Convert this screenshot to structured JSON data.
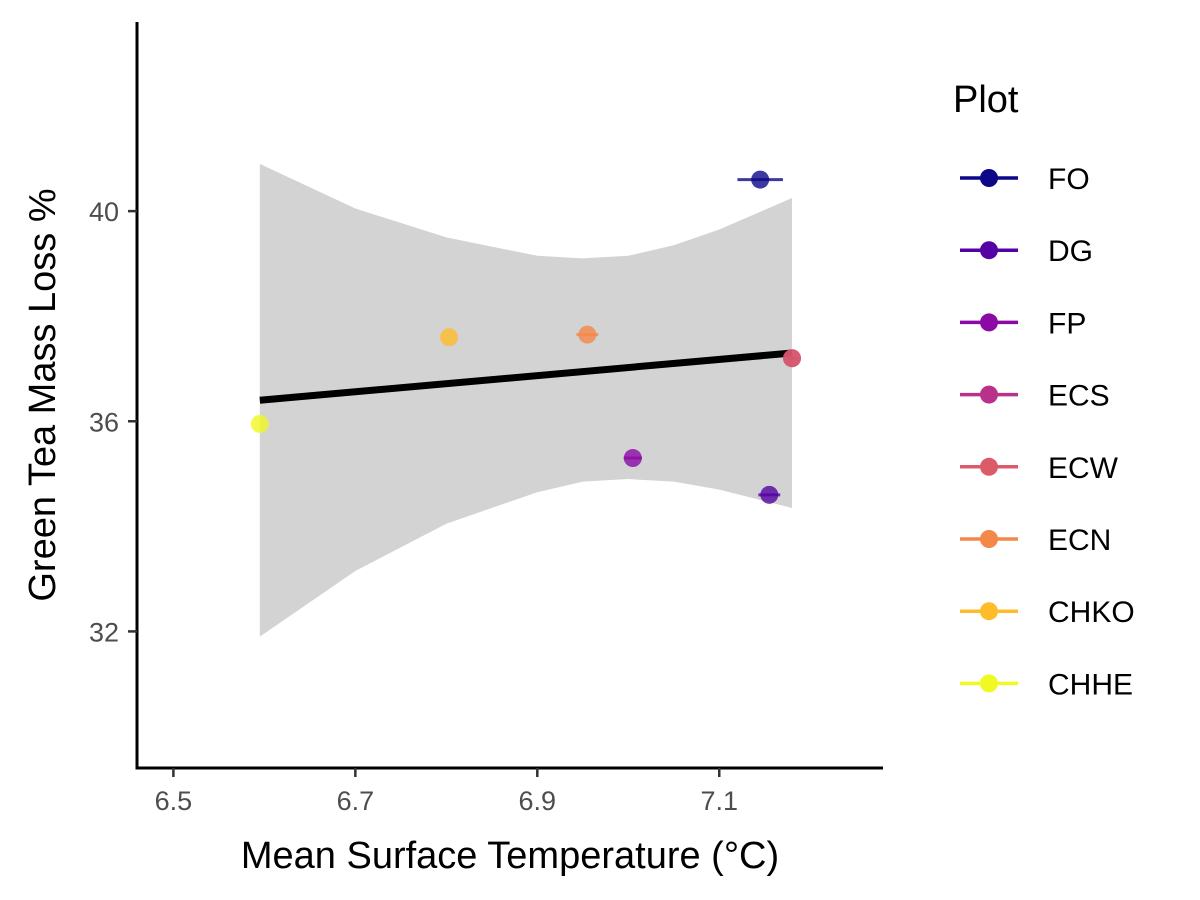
{
  "chart_data": {
    "type": "scatter",
    "xlabel": "Mean Surface Temperature (°C)",
    "ylabel": "Green Tea Mass Loss %",
    "xlim": [
      6.46,
      7.28
    ],
    "ylim": [
      29.4,
      43.6
    ],
    "x_ticks": [
      6.5,
      6.7,
      6.9,
      7.1
    ],
    "x_tick_labels": [
      "6.5",
      "6.7",
      "6.9",
      "7.1"
    ],
    "y_ticks": [
      32,
      36,
      40
    ],
    "y_tick_labels": [
      "32",
      "36",
      "40"
    ],
    "grid": false,
    "legend": {
      "title": "Plot",
      "position": "right"
    },
    "series": [
      {
        "name": "FO",
        "color": "#0D0887",
        "x": 7.145,
        "y": 40.6,
        "x_err": 0.025
      },
      {
        "name": "DG",
        "color": "#5402A3",
        "x": 7.155,
        "y": 34.6,
        "x_err": 0.012
      },
      {
        "name": "FP",
        "color": "#8B0AA5",
        "x": 7.005,
        "y": 35.3,
        "x_err": 0.01
      },
      {
        "name": "ECS",
        "color": "#B93289",
        "x": 7.18,
        "y": 37.2,
        "x_err": 0.005
      },
      {
        "name": "ECW",
        "color": "#DB5C68",
        "x": 7.18,
        "y": 37.2,
        "x_err": 0.0
      },
      {
        "name": "ECN",
        "color": "#F48849",
        "x": 6.955,
        "y": 37.65,
        "x_err": 0.012
      },
      {
        "name": "CHKO",
        "color": "#FEBC2A",
        "x": 6.803,
        "y": 37.6,
        "x_err": 0.0
      },
      {
        "name": "CHHE",
        "color": "#F0F921",
        "x": 6.595,
        "y": 35.95,
        "x_err": 0.0
      }
    ],
    "trend_line": {
      "color": "#000000",
      "x": [
        6.595,
        7.18
      ],
      "y": [
        36.4,
        37.3
      ]
    },
    "confidence_band": {
      "color": "#D3D3D3",
      "x": [
        6.595,
        6.7,
        6.8,
        6.9,
        6.95,
        7.0,
        7.05,
        7.1,
        7.18
      ],
      "upper": [
        40.9,
        40.05,
        39.5,
        39.15,
        39.1,
        39.15,
        39.35,
        39.65,
        40.25
      ],
      "lower": [
        31.9,
        33.15,
        34.05,
        34.65,
        34.85,
        34.9,
        34.85,
        34.7,
        34.35
      ]
    }
  }
}
